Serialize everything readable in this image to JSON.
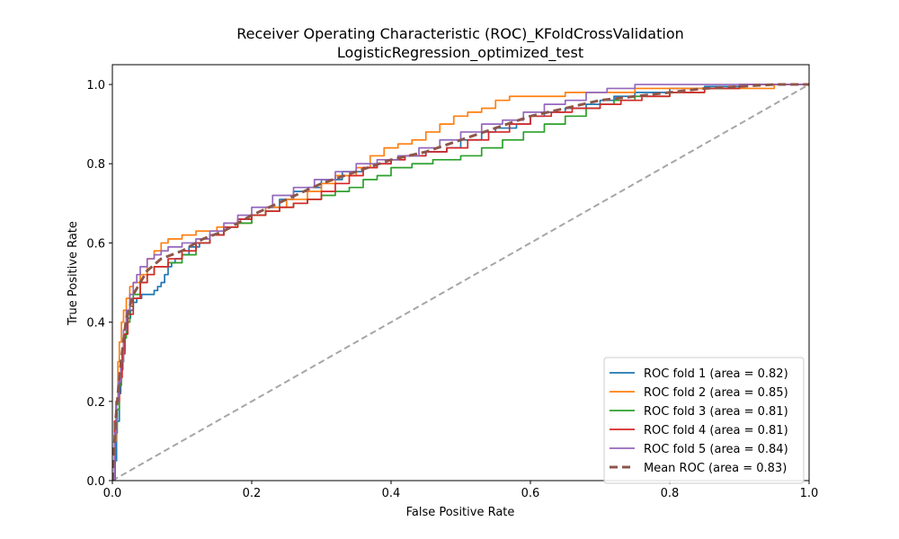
{
  "chart_data": {
    "type": "line",
    "title": "Receiver Operating Characteristic (ROC)_KFoldCrossValidation",
    "subtitle": "LogisticRegression_optimized_test",
    "xlabel": "False Positive Rate",
    "ylabel": "True Positive Rate",
    "xlim": [
      0.0,
      1.0
    ],
    "ylim": [
      0.0,
      1.05
    ],
    "xticks": [
      "0.0",
      "0.2",
      "0.4",
      "0.6",
      "0.8",
      "1.0"
    ],
    "yticks": [
      "0.0",
      "0.2",
      "0.4",
      "0.6",
      "0.8",
      "1.0"
    ],
    "grid": false,
    "legend_position": "lower-right",
    "series": [
      {
        "name": "ROC fold 1 (area = 0.82)",
        "color": "#1f77b4",
        "style": "step",
        "x": [
          0.0,
          0.004,
          0.006,
          0.01,
          0.012,
          0.015,
          0.018,
          0.022,
          0.026,
          0.03,
          0.035,
          0.042,
          0.05,
          0.06,
          0.065,
          0.07,
          0.075,
          0.08,
          0.085,
          0.09,
          0.1,
          0.11,
          0.125,
          0.14,
          0.16,
          0.18,
          0.2,
          0.22,
          0.24,
          0.26,
          0.28,
          0.3,
          0.33,
          0.36,
          0.38,
          0.4,
          0.42,
          0.45,
          0.48,
          0.5,
          0.53,
          0.55,
          0.58,
          0.6,
          0.62,
          0.65,
          0.68,
          0.7,
          0.72,
          0.75,
          0.78,
          0.8,
          0.85,
          0.9,
          1.0
        ],
        "y": [
          0.0,
          0.05,
          0.15,
          0.22,
          0.28,
          0.33,
          0.37,
          0.41,
          0.43,
          0.45,
          0.46,
          0.47,
          0.47,
          0.48,
          0.49,
          0.5,
          0.52,
          0.54,
          0.55,
          0.56,
          0.57,
          0.59,
          0.6,
          0.62,
          0.64,
          0.66,
          0.67,
          0.69,
          0.71,
          0.73,
          0.74,
          0.76,
          0.78,
          0.79,
          0.8,
          0.81,
          0.82,
          0.83,
          0.84,
          0.86,
          0.88,
          0.89,
          0.9,
          0.92,
          0.93,
          0.94,
          0.95,
          0.96,
          0.97,
          0.98,
          0.98,
          0.99,
          0.995,
          1.0,
          1.0
        ]
      },
      {
        "name": "ROC fold 2 (area = 0.85)",
        "color": "#ff7f0e",
        "style": "step",
        "x": [
          0.0,
          0.003,
          0.005,
          0.008,
          0.01,
          0.013,
          0.016,
          0.02,
          0.025,
          0.03,
          0.04,
          0.05,
          0.06,
          0.07,
          0.08,
          0.1,
          0.12,
          0.15,
          0.18,
          0.2,
          0.22,
          0.25,
          0.28,
          0.3,
          0.32,
          0.35,
          0.37,
          0.39,
          0.41,
          0.43,
          0.45,
          0.47,
          0.49,
          0.51,
          0.53,
          0.55,
          0.57,
          0.6,
          0.65,
          0.7,
          0.75,
          0.8,
          0.85,
          0.9,
          0.95,
          1.0
        ],
        "y": [
          0.0,
          0.1,
          0.2,
          0.3,
          0.35,
          0.4,
          0.43,
          0.46,
          0.49,
          0.5,
          0.52,
          0.56,
          0.58,
          0.6,
          0.61,
          0.62,
          0.63,
          0.64,
          0.65,
          0.67,
          0.69,
          0.71,
          0.73,
          0.75,
          0.77,
          0.79,
          0.82,
          0.84,
          0.85,
          0.86,
          0.88,
          0.9,
          0.92,
          0.93,
          0.94,
          0.96,
          0.97,
          0.97,
          0.98,
          0.98,
          0.99,
          0.99,
          0.99,
          0.99,
          1.0,
          1.0
        ]
      },
      {
        "name": "ROC fold 3 (area = 0.81)",
        "color": "#2ca02c",
        "style": "step",
        "x": [
          0.0,
          0.004,
          0.007,
          0.01,
          0.013,
          0.016,
          0.02,
          0.025,
          0.03,
          0.04,
          0.05,
          0.06,
          0.08,
          0.1,
          0.12,
          0.14,
          0.16,
          0.18,
          0.2,
          0.22,
          0.24,
          0.26,
          0.28,
          0.3,
          0.32,
          0.34,
          0.36,
          0.38,
          0.4,
          0.43,
          0.46,
          0.5,
          0.53,
          0.56,
          0.59,
          0.62,
          0.65,
          0.68,
          0.7,
          0.72,
          0.75,
          0.8,
          0.85,
          0.9,
          0.95,
          1.0
        ],
        "y": [
          0.0,
          0.12,
          0.18,
          0.24,
          0.3,
          0.36,
          0.4,
          0.44,
          0.47,
          0.5,
          0.52,
          0.54,
          0.55,
          0.57,
          0.6,
          0.62,
          0.64,
          0.65,
          0.67,
          0.68,
          0.69,
          0.7,
          0.71,
          0.72,
          0.73,
          0.74,
          0.76,
          0.77,
          0.79,
          0.8,
          0.81,
          0.82,
          0.84,
          0.86,
          0.88,
          0.9,
          0.92,
          0.94,
          0.95,
          0.96,
          0.97,
          0.98,
          0.99,
          1.0,
          1.0,
          1.0
        ]
      },
      {
        "name": "ROC fold 4 (area = 0.81)",
        "color": "#d62728",
        "style": "step",
        "x": [
          0.0,
          0.003,
          0.006,
          0.01,
          0.014,
          0.018,
          0.022,
          0.03,
          0.04,
          0.05,
          0.06,
          0.08,
          0.1,
          0.12,
          0.14,
          0.16,
          0.18,
          0.2,
          0.22,
          0.24,
          0.26,
          0.28,
          0.3,
          0.32,
          0.34,
          0.36,
          0.38,
          0.4,
          0.42,
          0.45,
          0.48,
          0.51,
          0.54,
          0.57,
          0.6,
          0.63,
          0.66,
          0.7,
          0.73,
          0.76,
          0.8,
          0.85,
          0.9,
          0.95,
          1.0
        ],
        "y": [
          0.0,
          0.15,
          0.2,
          0.26,
          0.32,
          0.37,
          0.42,
          0.46,
          0.5,
          0.52,
          0.54,
          0.56,
          0.58,
          0.6,
          0.62,
          0.64,
          0.66,
          0.67,
          0.68,
          0.69,
          0.7,
          0.71,
          0.73,
          0.75,
          0.77,
          0.79,
          0.8,
          0.81,
          0.82,
          0.83,
          0.84,
          0.86,
          0.88,
          0.9,
          0.92,
          0.93,
          0.94,
          0.95,
          0.96,
          0.97,
          0.98,
          0.99,
          1.0,
          1.0,
          1.0
        ]
      },
      {
        "name": "ROC fold 5 (area = 0.84)",
        "color": "#9467bd",
        "style": "step",
        "x": [
          0.0,
          0.003,
          0.006,
          0.009,
          0.012,
          0.016,
          0.02,
          0.025,
          0.03,
          0.035,
          0.04,
          0.05,
          0.06,
          0.07,
          0.08,
          0.1,
          0.12,
          0.14,
          0.16,
          0.18,
          0.2,
          0.23,
          0.26,
          0.29,
          0.32,
          0.35,
          0.38,
          0.41,
          0.44,
          0.47,
          0.5,
          0.53,
          0.56,
          0.59,
          0.62,
          0.65,
          0.68,
          0.71,
          0.75,
          0.8,
          0.85,
          0.9,
          0.95,
          1.0
        ],
        "y": [
          0.0,
          0.12,
          0.2,
          0.25,
          0.3,
          0.38,
          0.43,
          0.47,
          0.5,
          0.52,
          0.54,
          0.56,
          0.57,
          0.58,
          0.59,
          0.6,
          0.61,
          0.63,
          0.65,
          0.67,
          0.69,
          0.72,
          0.74,
          0.76,
          0.78,
          0.8,
          0.81,
          0.82,
          0.84,
          0.86,
          0.88,
          0.9,
          0.91,
          0.93,
          0.95,
          0.96,
          0.98,
          0.99,
          1.0,
          1.0,
          1.0,
          1.0,
          1.0,
          1.0
        ]
      },
      {
        "name": "Mean ROC (area = 0.83)",
        "color": "#8c564b",
        "style": "dashed",
        "x": [
          0.0,
          0.005,
          0.01,
          0.015,
          0.02,
          0.03,
          0.04,
          0.05,
          0.07,
          0.1,
          0.13,
          0.16,
          0.2,
          0.25,
          0.3,
          0.35,
          0.4,
          0.45,
          0.5,
          0.55,
          0.6,
          0.65,
          0.7,
          0.75,
          0.8,
          0.85,
          0.9,
          0.95,
          1.0
        ],
        "y": [
          0.0,
          0.16,
          0.26,
          0.34,
          0.41,
          0.47,
          0.5,
          0.53,
          0.56,
          0.58,
          0.61,
          0.63,
          0.67,
          0.71,
          0.75,
          0.78,
          0.81,
          0.83,
          0.86,
          0.89,
          0.92,
          0.94,
          0.96,
          0.97,
          0.98,
          0.99,
          0.995,
          1.0,
          1.0
        ]
      }
    ],
    "reference_line": {
      "color": "#a6a6a6",
      "style": "dashed",
      "x": [
        0.0,
        1.0
      ],
      "y": [
        0.0,
        1.0
      ]
    }
  }
}
